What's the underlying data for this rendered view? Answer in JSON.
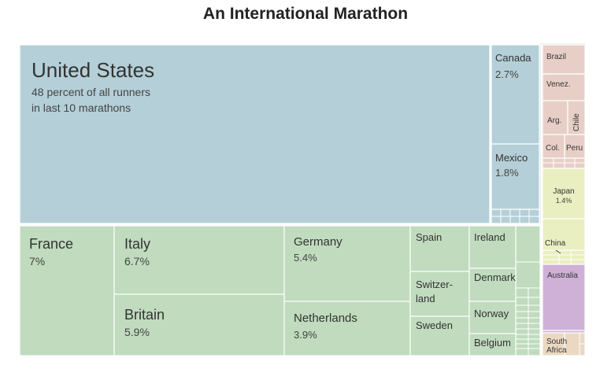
{
  "chart_data": {
    "type": "treemap",
    "title": "An International Marathon",
    "colors": {
      "north_america": "#b4cfd7",
      "europe": "#c0dbbe",
      "south_america": "#e7cfc7",
      "asia": "#e9efc0",
      "oceania": "#cfb1d7",
      "africa": "#ead8c2"
    },
    "cells": [
      {
        "name": "United States",
        "value": 48,
        "label": "United States",
        "sub1": "48 percent of all runners",
        "sub2": "in last 10 marathons",
        "color": "#b4cfd7"
      },
      {
        "name": "Canada",
        "value": 2.7,
        "label": "Canada",
        "sub1": "2.7%",
        "color": "#b4cfd7"
      },
      {
        "name": "Mexico",
        "value": 1.8,
        "label": "Mexico",
        "sub1": "1.8%",
        "color": "#b4cfd7"
      },
      {
        "name": "France",
        "value": 7,
        "label": "France",
        "sub1": "7%",
        "color": "#c0dbbe"
      },
      {
        "name": "Italy",
        "value": 6.7,
        "label": "Italy",
        "sub1": "6.7%",
        "color": "#c0dbbe"
      },
      {
        "name": "Britain",
        "value": 5.9,
        "label": "Britain",
        "sub1": "5.9%",
        "color": "#c0dbbe"
      },
      {
        "name": "Germany",
        "value": 5.4,
        "label": "Germany",
        "sub1": "5.4%",
        "color": "#c0dbbe"
      },
      {
        "name": "Netherlands",
        "value": 3.9,
        "label": "Netherlands",
        "sub1": "3.9%",
        "color": "#c0dbbe"
      },
      {
        "name": "Spain",
        "label": "Spain",
        "color": "#c0dbbe"
      },
      {
        "name": "Switzerland",
        "label": "Switzer-",
        "label2": "land",
        "color": "#c0dbbe"
      },
      {
        "name": "Sweden",
        "label": "Sweden",
        "color": "#c0dbbe"
      },
      {
        "name": "Ireland",
        "label": "Ireland",
        "color": "#c0dbbe"
      },
      {
        "name": "Denmark",
        "label": "Denmark",
        "color": "#c0dbbe"
      },
      {
        "name": "Norway",
        "label": "Norway",
        "color": "#c0dbbe"
      },
      {
        "name": "Belgium",
        "label": "Belgium",
        "color": "#c0dbbe"
      },
      {
        "name": "Brazil",
        "label": "Brazil",
        "color": "#e7cfc7"
      },
      {
        "name": "Venezuela",
        "label": "Venez.",
        "color": "#e7cfc7"
      },
      {
        "name": "Argentina",
        "label": "Arg.",
        "color": "#e7cfc7"
      },
      {
        "name": "Chile",
        "label": "Chile",
        "color": "#e7cfc7"
      },
      {
        "name": "Colombia",
        "label": "Col.",
        "color": "#e7cfc7"
      },
      {
        "name": "Peru",
        "label": "Peru",
        "color": "#e7cfc7"
      },
      {
        "name": "Japan",
        "value": 1.4,
        "label": "Japan",
        "sub1": "1.4%",
        "color": "#e9efc0"
      },
      {
        "name": "China",
        "label": "China",
        "color": "#e9efc0"
      },
      {
        "name": "Australia",
        "label": "Australia",
        "color": "#cfb1d7"
      },
      {
        "name": "South Africa",
        "label": "South",
        "label2": "Africa",
        "color": "#ead8c2"
      }
    ]
  }
}
